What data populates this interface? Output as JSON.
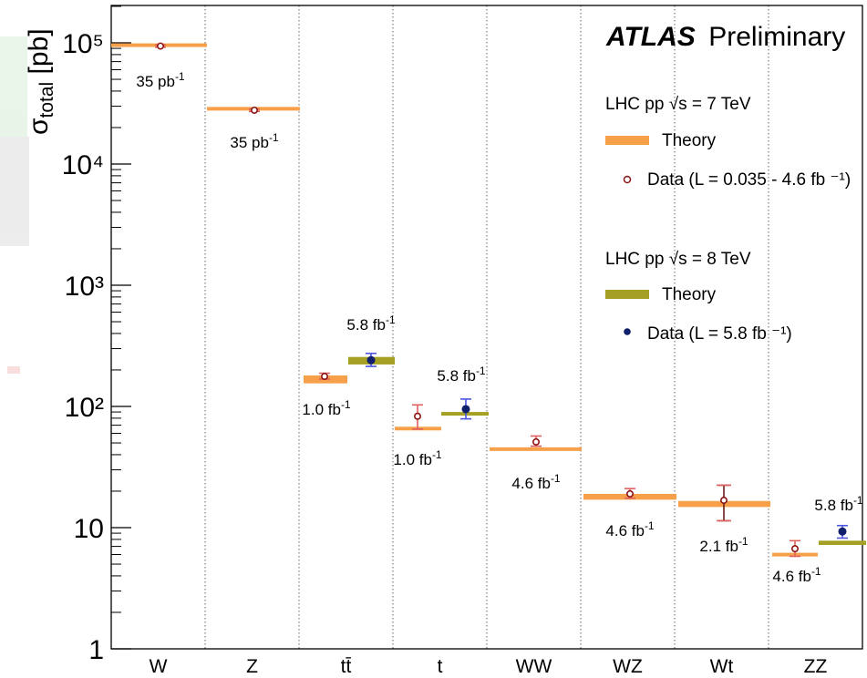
{
  "header": {
    "experiment": "ATLAS",
    "status": "Preliminary"
  },
  "colors": {
    "theory7": "#f7a04a",
    "theory8": "#a4a024",
    "data7": "#8b1414",
    "data7_err": "#e06060",
    "data8": "#0f1f6b",
    "data8_err": "#4c54e0",
    "wt_err": "#e06060"
  },
  "legend": {
    "group7": {
      "title": "LHC pp  √s = 7 TeV",
      "theory": "Theory",
      "data": "Data (L = 0.035 - 4.6 fb ⁻¹)"
    },
    "group8": {
      "title": "LHC pp  √s = 8 TeV",
      "theory": "Theory",
      "data": "Data (L = 5.8 fb ⁻¹)"
    }
  },
  "chart_data": {
    "type": "scatter",
    "ylabel": "σtotal [pb]",
    "yscale": "log",
    "ylim": [
      1,
      200000
    ],
    "ytick_labels": [
      "1",
      "10",
      "10²",
      "10³",
      "10⁴",
      "10⁵"
    ],
    "yticks": [
      1,
      10,
      100,
      1000,
      10000,
      100000
    ],
    "categories": [
      "W",
      "Z",
      "tt̄",
      "t",
      "WW",
      "WZ",
      "Wt",
      "ZZ"
    ],
    "theory_7TeV": [
      {
        "category": "W",
        "value": 97000,
        "band": [
          95000,
          99000
        ]
      },
      {
        "category": "Z",
        "value": 28800,
        "band": [
          28000,
          29600
        ]
      },
      {
        "category": "tt̄",
        "value": 167,
        "band": [
          155,
          180
        ]
      },
      {
        "category": "t",
        "value": 66,
        "band": [
          64,
          68
        ]
      },
      {
        "category": "WW",
        "value": 45,
        "band": [
          44,
          46
        ]
      },
      {
        "category": "WZ",
        "value": 18,
        "band": [
          17,
          19
        ]
      },
      {
        "category": "Wt",
        "value": 15.7,
        "band": [
          14.8,
          16.6
        ]
      },
      {
        "category": "ZZ",
        "value": 6,
        "band": [
          5.8,
          6.2
        ]
      }
    ],
    "data_7TeV": [
      {
        "category": "W",
        "value": 94000,
        "err": [
          92000,
          96000
        ],
        "lumi": "35 pb-1"
      },
      {
        "category": "Z",
        "value": 27800,
        "err": [
          27200,
          28400
        ],
        "lumi": "35 pb-1"
      },
      {
        "category": "tt̄",
        "value": 177,
        "err": [
          168,
          188
        ],
        "lumi": "1.0 fb-1"
      },
      {
        "category": "t",
        "value": 83,
        "err": [
          65,
          103
        ],
        "lumi": "1.0 fb-1"
      },
      {
        "category": "WW",
        "value": 51,
        "err": [
          47,
          57
        ],
        "lumi": "4.6 fb-1"
      },
      {
        "category": "WZ",
        "value": 19,
        "err": [
          17.5,
          21
        ],
        "lumi": "4.6 fb-1"
      },
      {
        "category": "Wt",
        "value": 16.8,
        "err": [
          11.4,
          22.4
        ],
        "lumi": "2.1 fb-1"
      },
      {
        "category": "ZZ",
        "value": 6.7,
        "err": [
          5.8,
          7.8
        ],
        "lumi": "4.6 fb-1"
      }
    ],
    "theory_8TeV": [
      {
        "category": "tt̄",
        "value": 238,
        "band": [
          222,
          256
        ]
      },
      {
        "category": "t",
        "value": 88,
        "band": [
          86,
          90
        ]
      },
      {
        "category": "ZZ",
        "value": 7.5,
        "band": [
          7.2,
          7.8
        ]
      }
    ],
    "data_8TeV": [
      {
        "category": "tt̄",
        "value": 241,
        "err": [
          214,
          274
        ],
        "lumi": "5.8 fb-1"
      },
      {
        "category": "t",
        "value": 95,
        "err": [
          79,
          115
        ],
        "lumi": "5.8 fb-1"
      },
      {
        "category": "ZZ",
        "value": 9.3,
        "err": [
          8.2,
          10.4
        ],
        "lumi": "5.8 fb-1"
      }
    ]
  }
}
